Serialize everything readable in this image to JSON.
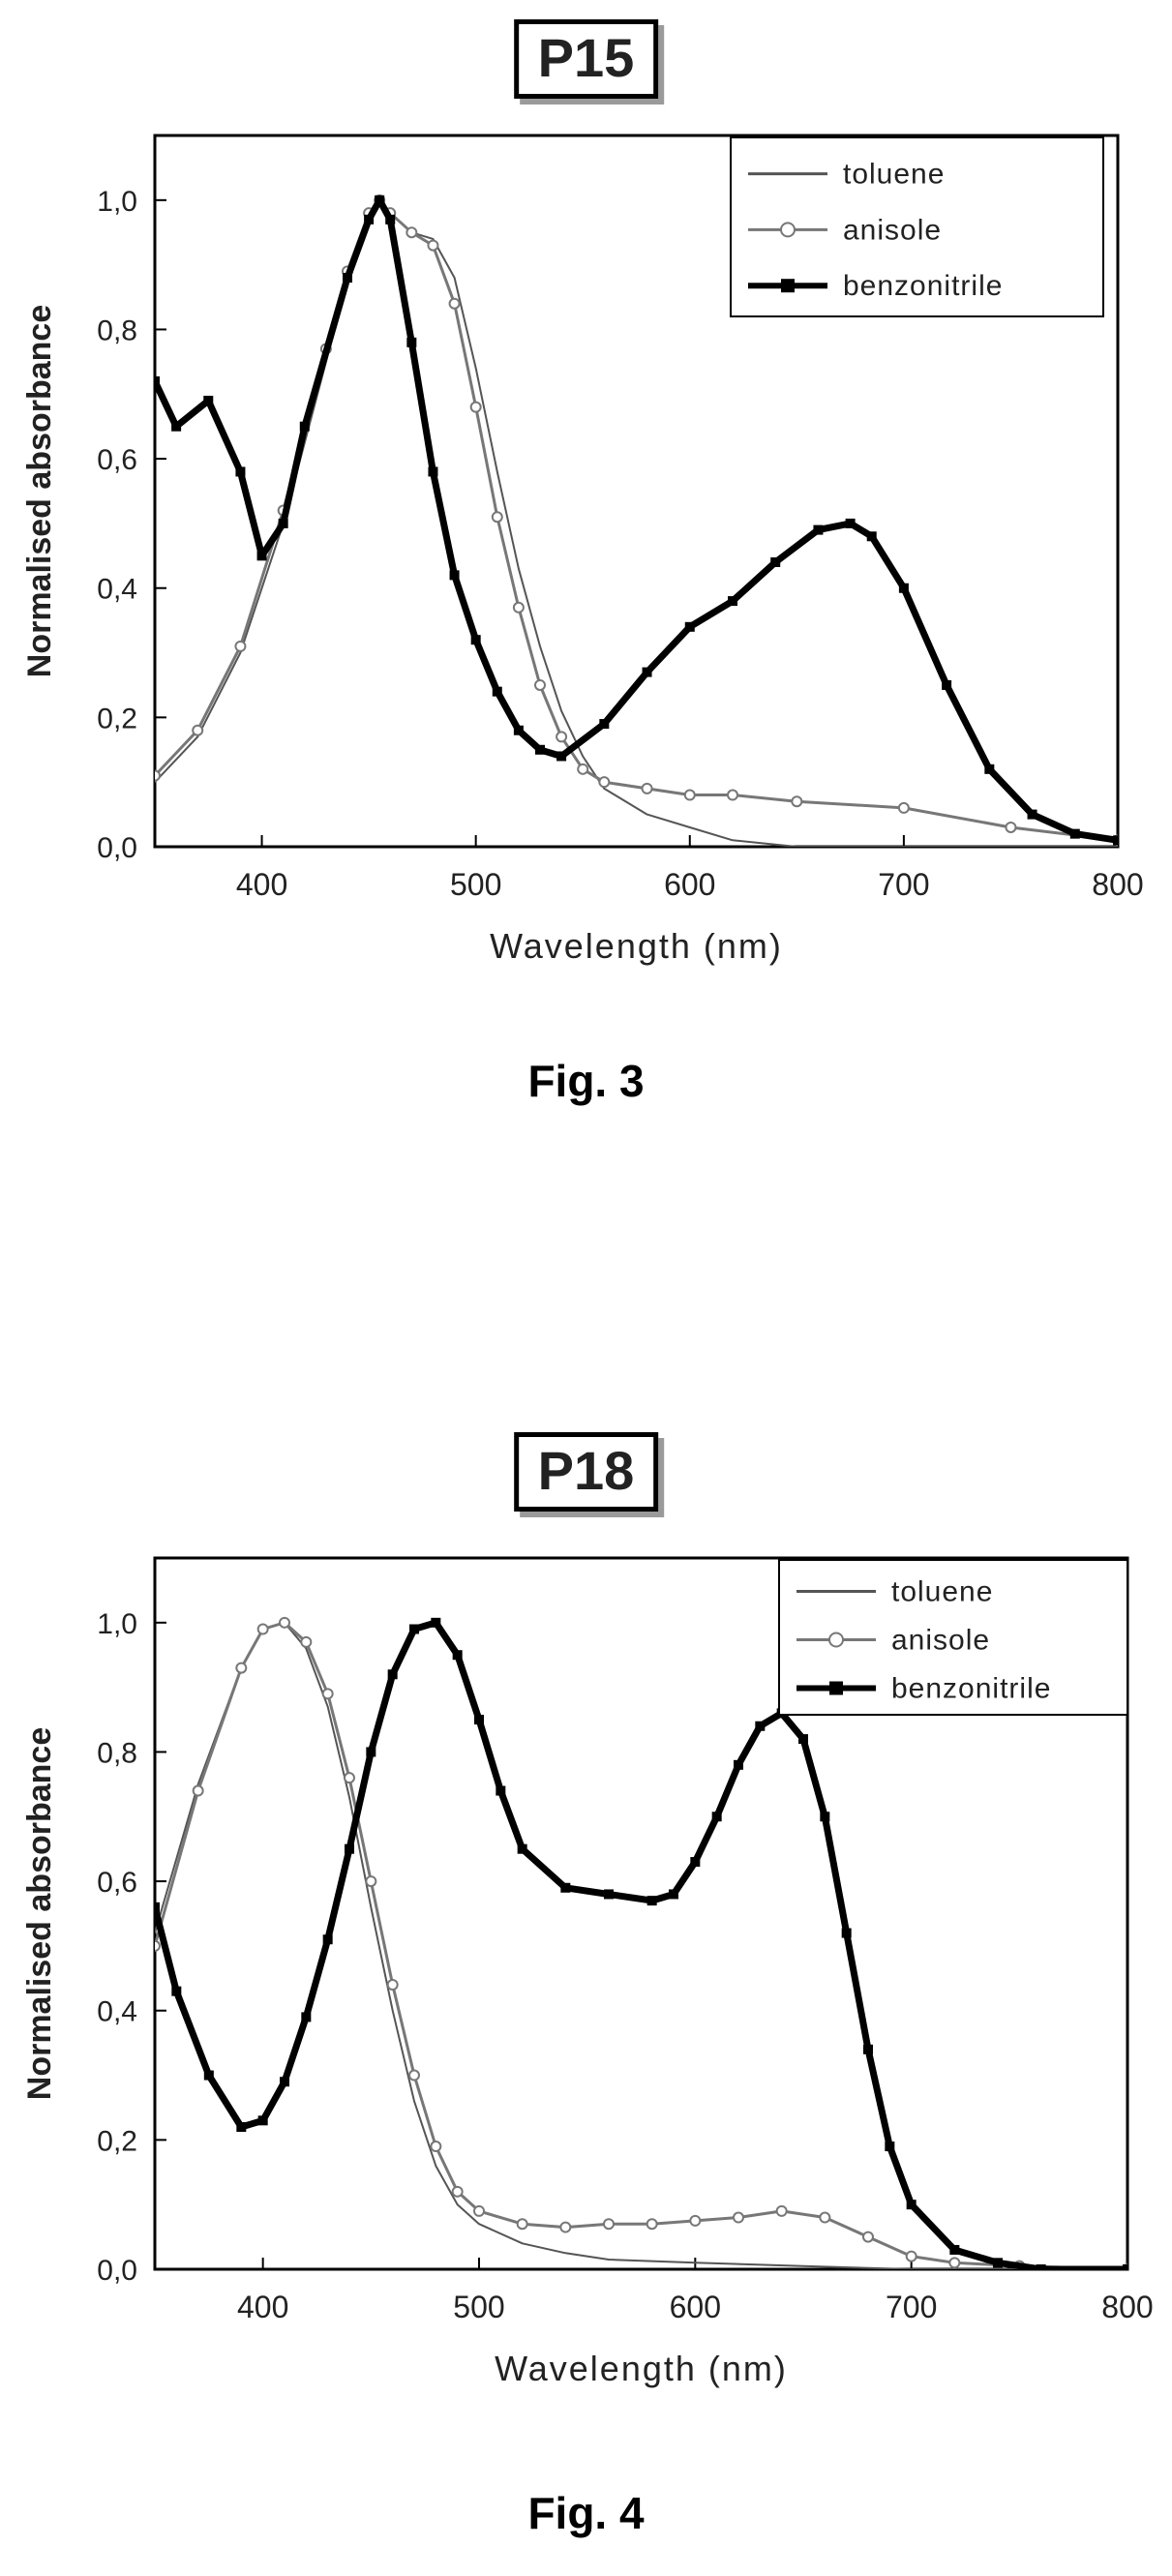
{
  "chart_data": [
    {
      "type": "line",
      "title": "P15",
      "caption": "Fig. 3",
      "xlabel": "Wavelength (nm)",
      "ylabel": "Normalised absorbance",
      "xlim": [
        350,
        800
      ],
      "ylim": [
        0,
        1.1
      ],
      "xticks": [
        400,
        500,
        600,
        700,
        800
      ],
      "xtick_labels": [
        "400",
        "500",
        "600",
        "700",
        "800"
      ],
      "yticks": [
        0.0,
        0.2,
        0.4,
        0.6,
        0.8,
        1.0
      ],
      "ytick_labels": [
        "0,0",
        "0,2",
        "0,4",
        "0,6",
        "0,8",
        "1,0"
      ],
      "grid": false,
      "legend_position": "top-right",
      "series": [
        {
          "name": "toluene",
          "marker": "none",
          "color": "#555555",
          "x": [
            350,
            370,
            390,
            410,
            430,
            440,
            450,
            455,
            460,
            470,
            480,
            490,
            500,
            510,
            520,
            530,
            540,
            550,
            560,
            580,
            600,
            620,
            650,
            700,
            750,
            800
          ],
          "y": [
            0.1,
            0.17,
            0.3,
            0.5,
            0.75,
            0.88,
            0.97,
            1.0,
            0.98,
            0.95,
            0.94,
            0.88,
            0.74,
            0.58,
            0.43,
            0.31,
            0.21,
            0.14,
            0.09,
            0.05,
            0.03,
            0.01,
            0.0,
            0.0,
            0.0,
            0.0
          ]
        },
        {
          "name": "anisole",
          "marker": "open-circle",
          "color": "#777777",
          "x": [
            350,
            370,
            390,
            410,
            430,
            440,
            450,
            455,
            460,
            470,
            480,
            490,
            500,
            510,
            520,
            530,
            540,
            550,
            560,
            580,
            600,
            620,
            650,
            700,
            750,
            800
          ],
          "y": [
            0.11,
            0.18,
            0.31,
            0.52,
            0.77,
            0.89,
            0.98,
            1.0,
            0.98,
            0.95,
            0.93,
            0.84,
            0.68,
            0.51,
            0.37,
            0.25,
            0.17,
            0.12,
            0.1,
            0.09,
            0.08,
            0.08,
            0.07,
            0.06,
            0.03,
            0.01
          ]
        },
        {
          "name": "benzonitrile",
          "marker": "filled-square",
          "color": "#000000",
          "x": [
            350,
            360,
            375,
            390,
            400,
            410,
            420,
            440,
            450,
            455,
            460,
            470,
            480,
            490,
            500,
            510,
            520,
            530,
            540,
            560,
            580,
            600,
            620,
            640,
            660,
            675,
            685,
            700,
            720,
            740,
            760,
            780,
            800
          ],
          "y": [
            0.72,
            0.65,
            0.69,
            0.58,
            0.45,
            0.5,
            0.65,
            0.88,
            0.97,
            1.0,
            0.97,
            0.78,
            0.58,
            0.42,
            0.32,
            0.24,
            0.18,
            0.15,
            0.14,
            0.19,
            0.27,
            0.34,
            0.38,
            0.44,
            0.49,
            0.5,
            0.48,
            0.4,
            0.25,
            0.12,
            0.05,
            0.02,
            0.01
          ]
        }
      ]
    },
    {
      "type": "line",
      "title": "P18",
      "caption": "Fig. 4",
      "xlabel": "Wavelength (nm)",
      "ylabel": "Normalised absorbance",
      "xlim": [
        350,
        800
      ],
      "ylim": [
        0,
        1.1
      ],
      "xticks": [
        400,
        500,
        600,
        700,
        800
      ],
      "xtick_labels": [
        "400",
        "500",
        "600",
        "700",
        "800"
      ],
      "yticks": [
        0.0,
        0.2,
        0.4,
        0.6,
        0.8,
        1.0
      ],
      "ytick_labels": [
        "0,0",
        "0,2",
        "0,4",
        "0,6",
        "0,8",
        "1,0"
      ],
      "grid": false,
      "legend_position": "top-right",
      "series": [
        {
          "name": "toluene",
          "marker": "none",
          "color": "#555555",
          "x": [
            350,
            370,
            390,
            400,
            410,
            420,
            430,
            440,
            450,
            460,
            470,
            480,
            490,
            500,
            520,
            540,
            560,
            600,
            650,
            700,
            800
          ],
          "y": [
            0.52,
            0.75,
            0.93,
            0.99,
            1.0,
            0.96,
            0.87,
            0.73,
            0.56,
            0.4,
            0.26,
            0.16,
            0.1,
            0.07,
            0.04,
            0.025,
            0.015,
            0.01,
            0.005,
            0.0,
            0.0
          ]
        },
        {
          "name": "anisole",
          "marker": "open-circle",
          "color": "#777777",
          "x": [
            350,
            370,
            390,
            400,
            410,
            420,
            430,
            440,
            450,
            460,
            470,
            480,
            490,
            500,
            520,
            540,
            560,
            580,
            600,
            620,
            640,
            660,
            680,
            700,
            720,
            750,
            800
          ],
          "y": [
            0.5,
            0.74,
            0.93,
            0.99,
            1.0,
            0.97,
            0.89,
            0.76,
            0.6,
            0.44,
            0.3,
            0.19,
            0.12,
            0.09,
            0.07,
            0.065,
            0.07,
            0.07,
            0.075,
            0.08,
            0.09,
            0.08,
            0.05,
            0.02,
            0.01,
            0.005,
            0.0
          ]
        },
        {
          "name": "benzonitrile",
          "marker": "filled-square",
          "color": "#000000",
          "x": [
            350,
            360,
            375,
            390,
            400,
            410,
            420,
            430,
            440,
            450,
            460,
            470,
            480,
            490,
            500,
            510,
            520,
            540,
            560,
            580,
            590,
            600,
            610,
            620,
            630,
            640,
            650,
            660,
            670,
            680,
            690,
            700,
            720,
            740,
            760,
            800
          ],
          "y": [
            0.56,
            0.43,
            0.3,
            0.22,
            0.23,
            0.29,
            0.39,
            0.51,
            0.65,
            0.8,
            0.92,
            0.99,
            1.0,
            0.95,
            0.85,
            0.74,
            0.65,
            0.59,
            0.58,
            0.57,
            0.58,
            0.63,
            0.7,
            0.78,
            0.84,
            0.86,
            0.82,
            0.7,
            0.52,
            0.34,
            0.19,
            0.1,
            0.03,
            0.01,
            0.0,
            0.0
          ]
        }
      ]
    }
  ]
}
